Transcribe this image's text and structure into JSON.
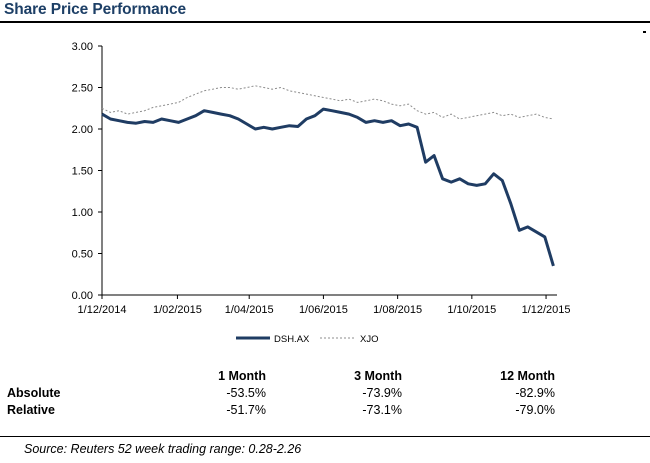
{
  "header": {
    "title": "Share Price Performance"
  },
  "chart_data": {
    "type": "line",
    "title": "",
    "xlabel": "",
    "ylabel": "",
    "ylim": [
      0,
      3
    ],
    "y_ticks": [
      "0.00",
      "0.50",
      "1.00",
      "1.50",
      "2.00",
      "2.50",
      "3.00"
    ],
    "x_ticks": [
      "1/12/2014",
      "1/02/2015",
      "1/04/2015",
      "1/06/2015",
      "1/08/2015",
      "1/10/2015",
      "1/12/2015"
    ],
    "grid": false,
    "legend_position": "bottom-center",
    "series": [
      {
        "name": "DSH.AX",
        "style": "solid",
        "color": "#1f3c63",
        "points": [
          [
            "2014-12-01",
            2.18
          ],
          [
            "2014-12-08",
            2.12
          ],
          [
            "2014-12-15",
            2.1
          ],
          [
            "2014-12-22",
            2.08
          ],
          [
            "2014-12-29",
            2.07
          ],
          [
            "2015-01-05",
            2.09
          ],
          [
            "2015-01-12",
            2.08
          ],
          [
            "2015-01-19",
            2.12
          ],
          [
            "2015-01-26",
            2.1
          ],
          [
            "2015-02-02",
            2.08
          ],
          [
            "2015-02-09",
            2.12
          ],
          [
            "2015-02-16",
            2.16
          ],
          [
            "2015-02-23",
            2.22
          ],
          [
            "2015-03-02",
            2.2
          ],
          [
            "2015-03-09",
            2.18
          ],
          [
            "2015-03-16",
            2.16
          ],
          [
            "2015-03-23",
            2.12
          ],
          [
            "2015-03-30",
            2.06
          ],
          [
            "2015-04-06",
            2.0
          ],
          [
            "2015-04-13",
            2.02
          ],
          [
            "2015-04-20",
            2.0
          ],
          [
            "2015-04-27",
            2.02
          ],
          [
            "2015-05-04",
            2.04
          ],
          [
            "2015-05-11",
            2.03
          ],
          [
            "2015-05-18",
            2.12
          ],
          [
            "2015-05-25",
            2.16
          ],
          [
            "2015-06-01",
            2.24
          ],
          [
            "2015-06-08",
            2.22
          ],
          [
            "2015-06-15",
            2.2
          ],
          [
            "2015-06-22",
            2.18
          ],
          [
            "2015-06-29",
            2.14
          ],
          [
            "2015-07-06",
            2.08
          ],
          [
            "2015-07-13",
            2.1
          ],
          [
            "2015-07-20",
            2.08
          ],
          [
            "2015-07-27",
            2.1
          ],
          [
            "2015-08-03",
            2.04
          ],
          [
            "2015-08-10",
            2.06
          ],
          [
            "2015-08-17",
            2.02
          ],
          [
            "2015-08-24",
            1.6
          ],
          [
            "2015-08-31",
            1.68
          ],
          [
            "2015-09-07",
            1.4
          ],
          [
            "2015-09-14",
            1.36
          ],
          [
            "2015-09-21",
            1.4
          ],
          [
            "2015-09-28",
            1.34
          ],
          [
            "2015-10-05",
            1.32
          ],
          [
            "2015-10-12",
            1.34
          ],
          [
            "2015-10-19",
            1.46
          ],
          [
            "2015-10-26",
            1.38
          ],
          [
            "2015-11-02",
            1.1
          ],
          [
            "2015-11-09",
            0.78
          ],
          [
            "2015-11-16",
            0.82
          ],
          [
            "2015-11-23",
            0.76
          ],
          [
            "2015-11-30",
            0.7
          ],
          [
            "2015-12-07",
            0.35
          ]
        ]
      },
      {
        "name": "XJO",
        "style": "dashed",
        "color": "#8c8c8c",
        "points": [
          [
            "2014-12-01",
            2.25
          ],
          [
            "2014-12-08",
            2.2
          ],
          [
            "2014-12-15",
            2.22
          ],
          [
            "2014-12-22",
            2.18
          ],
          [
            "2014-12-29",
            2.2
          ],
          [
            "2015-01-05",
            2.22
          ],
          [
            "2015-01-12",
            2.26
          ],
          [
            "2015-01-19",
            2.28
          ],
          [
            "2015-01-26",
            2.3
          ],
          [
            "2015-02-02",
            2.32
          ],
          [
            "2015-02-09",
            2.38
          ],
          [
            "2015-02-16",
            2.42
          ],
          [
            "2015-02-23",
            2.46
          ],
          [
            "2015-03-02",
            2.48
          ],
          [
            "2015-03-09",
            2.5
          ],
          [
            "2015-03-16",
            2.5
          ],
          [
            "2015-03-23",
            2.48
          ],
          [
            "2015-03-30",
            2.5
          ],
          [
            "2015-04-06",
            2.52
          ],
          [
            "2015-04-13",
            2.5
          ],
          [
            "2015-04-20",
            2.48
          ],
          [
            "2015-04-27",
            2.5
          ],
          [
            "2015-05-04",
            2.46
          ],
          [
            "2015-05-11",
            2.44
          ],
          [
            "2015-05-18",
            2.42
          ],
          [
            "2015-05-25",
            2.4
          ],
          [
            "2015-06-01",
            2.38
          ],
          [
            "2015-06-08",
            2.36
          ],
          [
            "2015-06-15",
            2.34
          ],
          [
            "2015-06-22",
            2.36
          ],
          [
            "2015-06-29",
            2.32
          ],
          [
            "2015-07-06",
            2.34
          ],
          [
            "2015-07-13",
            2.36
          ],
          [
            "2015-07-20",
            2.34
          ],
          [
            "2015-07-27",
            2.3
          ],
          [
            "2015-08-03",
            2.28
          ],
          [
            "2015-08-10",
            2.3
          ],
          [
            "2015-08-17",
            2.22
          ],
          [
            "2015-08-24",
            2.18
          ],
          [
            "2015-08-31",
            2.2
          ],
          [
            "2015-09-07",
            2.14
          ],
          [
            "2015-09-14",
            2.18
          ],
          [
            "2015-09-21",
            2.12
          ],
          [
            "2015-09-28",
            2.14
          ],
          [
            "2015-10-05",
            2.16
          ],
          [
            "2015-10-12",
            2.18
          ],
          [
            "2015-10-19",
            2.2
          ],
          [
            "2015-10-26",
            2.16
          ],
          [
            "2015-11-02",
            2.18
          ],
          [
            "2015-11-09",
            2.14
          ],
          [
            "2015-11-16",
            2.16
          ],
          [
            "2015-11-23",
            2.18
          ],
          [
            "2015-11-30",
            2.14
          ],
          [
            "2015-12-07",
            2.12
          ]
        ]
      }
    ]
  },
  "performance": {
    "columns": [
      "1 Month",
      "3 Month",
      "12 Month"
    ],
    "rows": [
      {
        "label": "Absolute",
        "values": [
          "-53.5%",
          "-73.9%",
          "-82.9%"
        ]
      },
      {
        "label": "Relative",
        "values": [
          "-51.7%",
          "-73.1%",
          "-79.0%"
        ]
      }
    ]
  },
  "footer": {
    "source": "Source: Reuters 52 week trading range: 0.28-2.26"
  }
}
